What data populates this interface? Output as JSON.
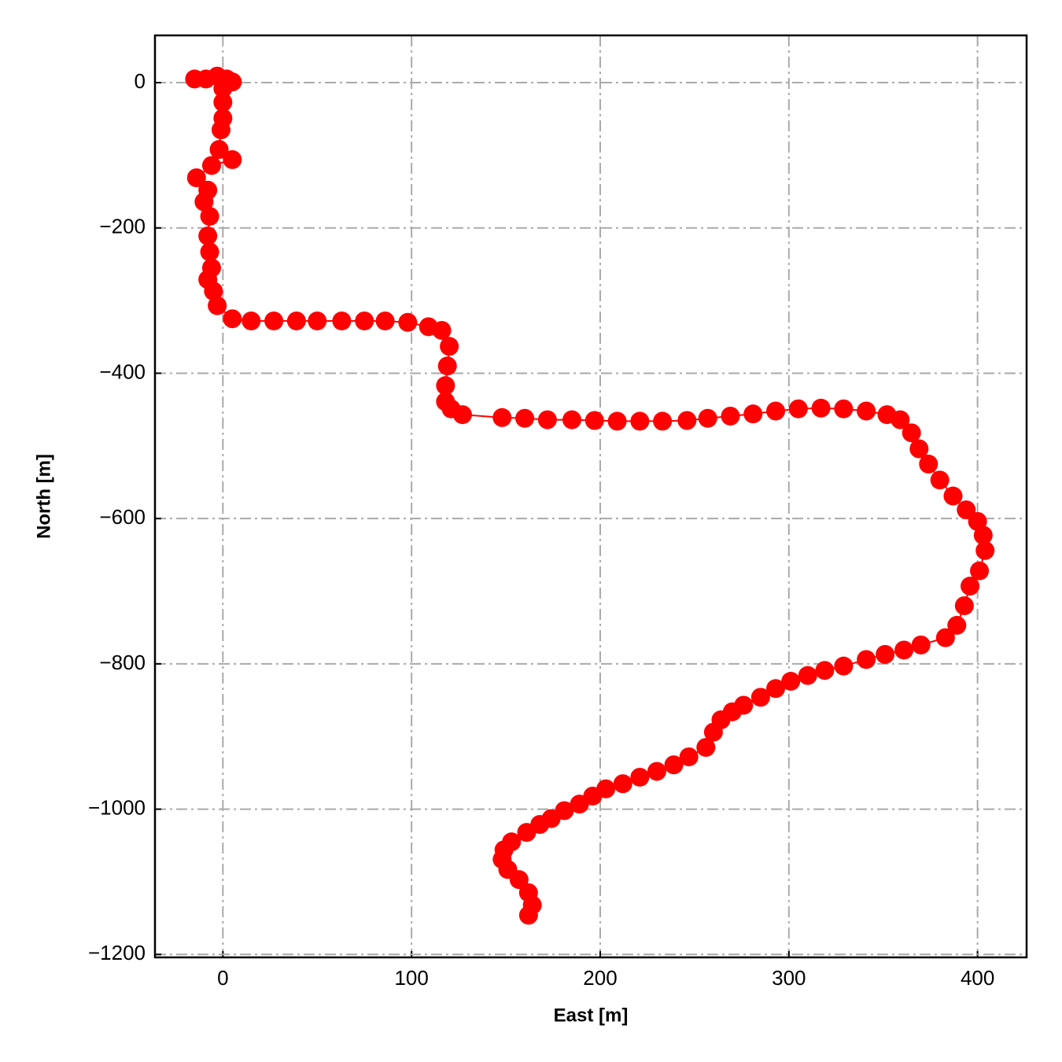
{
  "chart_data": {
    "type": "line",
    "xlabel": "East [m]",
    "ylabel": "North [m]",
    "color": "#ff0000",
    "grid": true,
    "x": [
      -15,
      -9,
      -3,
      2,
      5,
      0,
      0,
      0,
      -1,
      -2,
      5,
      -6,
      -14,
      -8,
      -10,
      -7,
      -8,
      -7,
      -6,
      -8,
      -5,
      -3,
      5,
      15,
      27,
      39,
      50,
      63,
      75,
      86,
      98,
      109,
      116,
      120,
      119,
      118,
      118,
      121,
      127,
      148,
      160,
      172,
      185,
      197,
      209,
      221,
      233,
      246,
      257,
      269,
      281,
      293,
      305,
      317,
      329,
      341,
      352,
      359,
      365,
      369,
      374,
      380,
      387,
      394,
      400,
      403,
      404,
      401,
      396,
      393,
      389,
      383,
      370,
      361,
      351,
      341,
      329,
      319,
      310,
      301,
      293,
      285,
      276,
      270,
      264,
      260,
      256,
      247,
      239,
      230,
      221,
      212,
      203,
      196,
      189,
      181,
      174,
      168,
      161,
      153,
      149,
      148,
      151,
      157,
      162,
      164,
      162
    ],
    "values": [
      5,
      5,
      9,
      5,
      1,
      -8,
      -27,
      -49,
      -65,
      -92,
      -106,
      -114,
      -131,
      -148,
      -164,
      -184,
      -211,
      -233,
      -255,
      -271,
      -287,
      -307,
      -325,
      -328,
      -328,
      -328,
      -328,
      -328,
      -328,
      -328,
      -330,
      -336,
      -341,
      -363,
      -390,
      -417,
      -439,
      -449,
      -457,
      -461,
      -462,
      -464,
      -464,
      -465,
      -466,
      -466,
      -466,
      -465,
      -462,
      -459,
      -456,
      -452,
      -449,
      -448,
      -449,
      -452,
      -457,
      -464,
      -482,
      -504,
      -525,
      -547,
      -569,
      -588,
      -604,
      -623,
      -644,
      -672,
      -693,
      -720,
      -747,
      -764,
      -774,
      -781,
      -787,
      -794,
      -803,
      -809,
      -816,
      -824,
      -834,
      -846,
      -857,
      -866,
      -877,
      -894,
      -915,
      -928,
      -939,
      -948,
      -956,
      -965,
      -972,
      -982,
      -993,
      -1002,
      -1013,
      -1021,
      -1032,
      -1045,
      -1056,
      -1069,
      -1083,
      -1097,
      -1115,
      -1132,
      -1146
    ],
    "xlim": [
      -36,
      426
    ],
    "ylim": [
      -1204,
      65
    ],
    "xticks": [
      0,
      100,
      200,
      300,
      400
    ],
    "yticks": [
      0,
      {
        "value": -200,
        "label": "−200"
      },
      {
        "value": -400,
        "label": "−400"
      },
      {
        "value": -600,
        "label": "−600"
      },
      {
        "value": -800,
        "label": "−800"
      },
      {
        "value": -1000,
        "label": "−1000"
      },
      {
        "value": -1200,
        "label": "−1200"
      }
    ]
  }
}
